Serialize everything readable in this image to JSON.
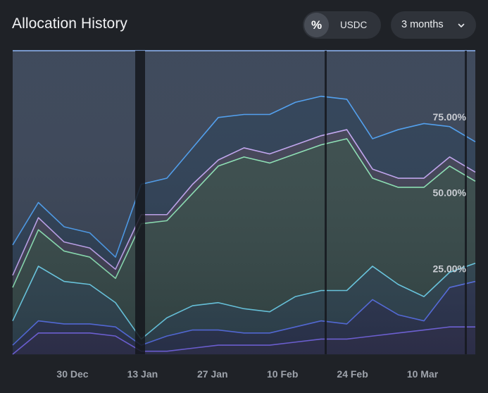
{
  "header": {
    "title": "Allocation History",
    "percent_toggle_label": "%",
    "currency_toggle_label": "USDC",
    "range_label": "3 months"
  },
  "icons": {
    "range_dropdown": "chevron-down-icon"
  },
  "colors": {
    "background": "#1f2227",
    "button_background": "#2f333a",
    "series": [
      "#7b6cf0",
      "#5b74f0",
      "#6fd6f2",
      "#8ce5b6",
      "#c3a6f4",
      "#4a9df0",
      "#8eb6f8"
    ]
  },
  "chart_data": {
    "type": "area",
    "stacked": true,
    "title": "Allocation History",
    "x_ticks": [
      "30 Dec",
      "13 Jan",
      "27 Jan",
      "10 Feb",
      "24 Feb",
      "10 Mar"
    ],
    "y_ticks": [
      "25.00%",
      "50.00%",
      "75.00%"
    ],
    "ylim": [
      0,
      100
    ],
    "x": [
      "19 Dec",
      "24 Dec",
      "29 Dec",
      "3 Jan",
      "8 Jan",
      "13 Jan",
      "18 Jan",
      "23 Jan",
      "28 Jan",
      "2 Feb",
      "7 Feb",
      "12 Feb",
      "17 Feb",
      "22 Feb",
      "27 Feb",
      "4 Mar",
      "9 Mar",
      "14 Mar",
      "19 Mar"
    ],
    "series": [
      {
        "values": [
          0,
          7,
          7,
          7,
          6,
          1,
          1,
          2,
          3,
          3,
          3,
          4,
          5,
          5,
          6,
          7,
          8,
          9,
          9
        ]
      },
      {
        "values": [
          3,
          4,
          3,
          3,
          3,
          2,
          5,
          6,
          5,
          4,
          4,
          5,
          6,
          5,
          12,
          6,
          3,
          13,
          15
        ]
      },
      {
        "values": [
          8,
          18,
          14,
          13,
          8,
          2,
          6,
          8,
          9,
          8,
          7,
          10,
          10,
          11,
          11,
          10,
          8,
          5,
          6
        ]
      },
      {
        "values": [
          11,
          12,
          10,
          9,
          8,
          38,
          32,
          37,
          45,
          50,
          49,
          47,
          48,
          50,
          29,
          32,
          36,
          35,
          27
        ]
      },
      {
        "values": [
          4,
          4,
          3,
          3,
          3,
          3,
          2,
          3,
          2,
          3,
          3,
          3,
          3,
          3,
          3,
          3,
          3,
          3,
          3
        ]
      },
      {
        "values": [
          10,
          5,
          5,
          5,
          4,
          10,
          12,
          12,
          14,
          11,
          13,
          14,
          13,
          10,
          10,
          16,
          18,
          10,
          10
        ]
      },
      {
        "values": [
          64,
          50,
          58,
          60,
          68,
          44,
          42,
          32,
          22,
          21,
          21,
          17,
          15,
          16,
          29,
          26,
          24,
          25,
          30
        ]
      }
    ],
    "grid": false,
    "legend": "none"
  }
}
